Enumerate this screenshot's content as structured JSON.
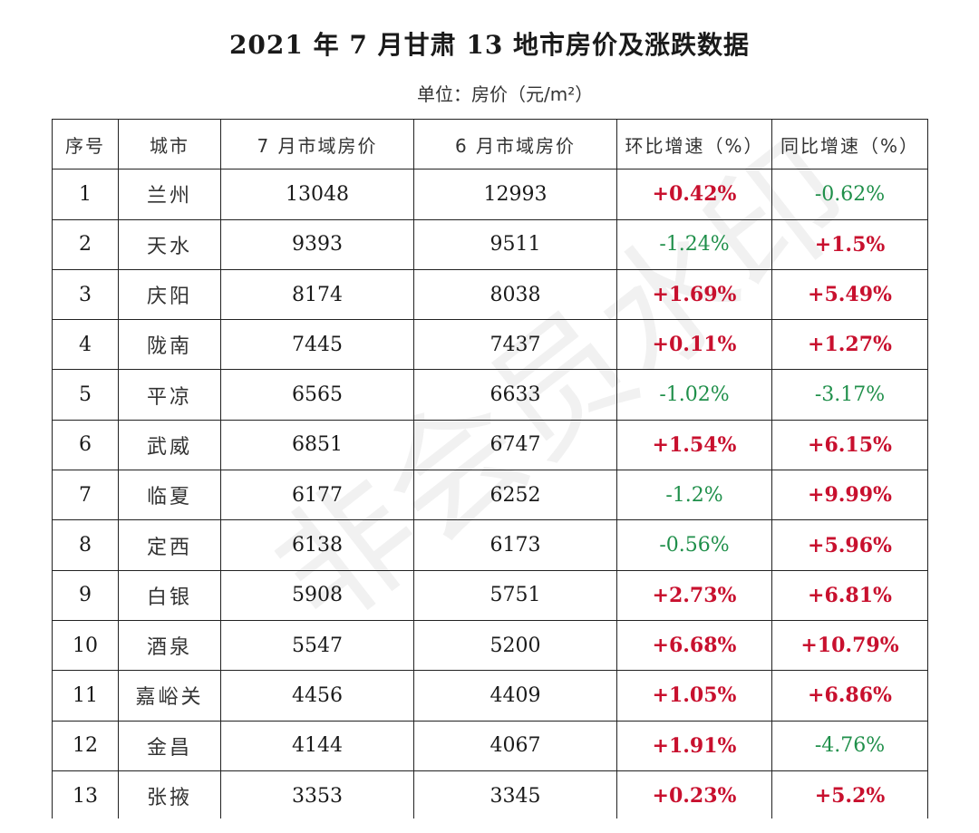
{
  "title": "2021 年 7 月甘肃 13 地市房价及涨跌数据",
  "unit": "单位：房价（元/m²）",
  "watermark": "非会员水印",
  "colors": {
    "up": "#c8102e",
    "down": "#1f8f4a"
  },
  "table": {
    "headers": [
      "序号",
      "城市",
      "7 月市域房价",
      "6 月市域房价",
      "环比增速（%）",
      "同比增速（%）"
    ],
    "rows": [
      {
        "no": "1",
        "city": "兰州",
        "jul": "13048",
        "jun": "12993",
        "mom": "+0.42%",
        "yoy": "-0.62%"
      },
      {
        "no": "2",
        "city": "天水",
        "jul": "9393",
        "jun": "9511",
        "mom": "-1.24%",
        "yoy": "+1.5%"
      },
      {
        "no": "3",
        "city": "庆阳",
        "jul": "8174",
        "jun": "8038",
        "mom": "+1.69%",
        "yoy": "+5.49%"
      },
      {
        "no": "4",
        "city": "陇南",
        "jul": "7445",
        "jun": "7437",
        "mom": "+0.11%",
        "yoy": "+1.27%"
      },
      {
        "no": "5",
        "city": "平凉",
        "jul": "6565",
        "jun": "6633",
        "mom": "-1.02%",
        "yoy": "-3.17%"
      },
      {
        "no": "6",
        "city": "武威",
        "jul": "6851",
        "jun": "6747",
        "mom": "+1.54%",
        "yoy": "+6.15%"
      },
      {
        "no": "7",
        "city": "临夏",
        "jul": "6177",
        "jun": "6252",
        "mom": "-1.2%",
        "yoy": "+9.99%"
      },
      {
        "no": "8",
        "city": "定西",
        "jul": "6138",
        "jun": "6173",
        "mom": "-0.56%",
        "yoy": "+5.96%"
      },
      {
        "no": "9",
        "city": "白银",
        "jul": "5908",
        "jun": "5751",
        "mom": "+2.73%",
        "yoy": "+6.81%"
      },
      {
        "no": "10",
        "city": "酒泉",
        "jul": "5547",
        "jun": "5200",
        "mom": "+6.68%",
        "yoy": "+10.79%"
      },
      {
        "no": "11",
        "city": "嘉峪关",
        "jul": "4456",
        "jun": "4409",
        "mom": "+1.05%",
        "yoy": "+6.86%"
      },
      {
        "no": "12",
        "city": "金昌",
        "jul": "4144",
        "jun": "4067",
        "mom": "+1.91%",
        "yoy": "-4.76%"
      },
      {
        "no": "13",
        "city": "张掖",
        "jul": "3353",
        "jun": "3345",
        "mom": "+0.23%",
        "yoy": "+5.2%"
      }
    ]
  }
}
